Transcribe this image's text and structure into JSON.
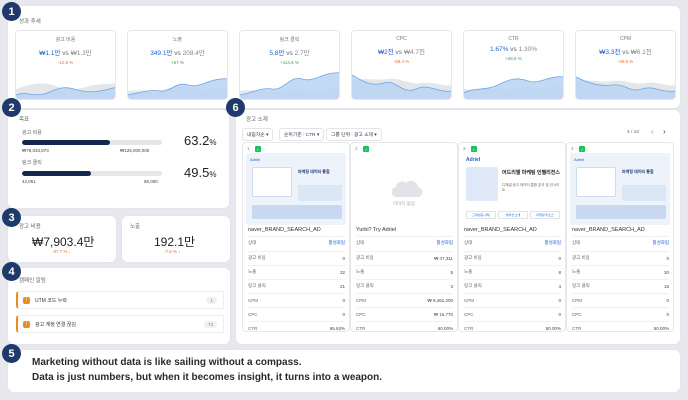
{
  "markers": [
    "1",
    "2",
    "3",
    "4",
    "5",
    "6"
  ],
  "performance": {
    "title": "성과 추세",
    "kpis": [
      {
        "label": "광고 비용",
        "current": "₩1.1만",
        "vs": "vs",
        "previous": "₩1.3만",
        "change": "-12.5 %",
        "dir": "down"
      },
      {
        "label": "노출",
        "current": "349.1만",
        "vs": "vs",
        "previous": "208.4만",
        "change": "+67 %",
        "dir": "up"
      },
      {
        "label": "링크 클릭",
        "current": "5.8만",
        "vs": "vs",
        "previous": "2.7만",
        "change": "+114.6 %",
        "dir": "up"
      },
      {
        "label": "CPC",
        "current": "₩2천",
        "vs": "vs",
        "previous": "₩4.7천",
        "change": "-58.4 %",
        "dir": "down"
      },
      {
        "label": "CTR",
        "current": "1.67%",
        "vs": "vs",
        "previous": "1.30%",
        "change": "+28.5 %",
        "dir": "up"
      },
      {
        "label": "CPM",
        "current": "₩3.3천",
        "vs": "vs",
        "previous": "₩6.1천",
        "change": "-46.5 %",
        "dir": "down"
      }
    ]
  },
  "goals": {
    "title": "목표",
    "items": [
      {
        "label": "광고 비용",
        "current": "₩79,033,873",
        "target": "₩125,000,000",
        "pct": "63.2",
        "unit": "%",
        "fill": 0.632
      },
      {
        "label": "링크 클릭",
        "current": "42,051",
        "target": "85,000",
        "pct": "49.5",
        "unit": "%",
        "fill": 0.495
      }
    ]
  },
  "summary": {
    "spend": {
      "label": "광고 비용",
      "value": "₩7,903.4만",
      "change": "-37.7 % ↓"
    },
    "impressions": {
      "label": "노출",
      "value": "192.1만",
      "change": "-7.8 % ↓"
    }
  },
  "alerts": {
    "title": "캠페인 알림",
    "items": [
      {
        "text": "UTM 코드 누락",
        "count": "1"
      },
      {
        "text": "광고 계정 연결 끊김",
        "count": "73"
      }
    ]
  },
  "quote": {
    "line1": "Marketing without data is like sailing without a compass.",
    "line2": "Data is just numbers, but when it becomes insight, it turns into a weapon."
  },
  "ads": {
    "title": "광고 소재",
    "sort": "내림차순 ▾",
    "metric": "순위기준 : CTR ▾",
    "group": "그룹 단위 : 광고 소재 ▾",
    "page": "4 / 10",
    "prev": "‹",
    "next": "›",
    "no_image": "이미지 없음",
    "columns": [
      {
        "index": "1",
        "name": "naver_BRAND_SEARCH_AD",
        "status_label": "상태",
        "status": "활성화됨",
        "rows": [
          [
            "광고 비용",
            "0"
          ],
          [
            "노출",
            "32"
          ],
          [
            "링크 클릭",
            "21"
          ],
          [
            "CPM",
            "0"
          ],
          [
            "CPC",
            "0"
          ],
          [
            "CTR",
            "65.63%"
          ]
        ]
      },
      {
        "index": "2",
        "name": "Yurbi? Try Adriel",
        "status_label": "상태",
        "status": "활성화됨",
        "rows": [
          [
            "광고 비용",
            "₩ 47,311"
          ],
          [
            "노출",
            "5"
          ],
          [
            "링크 클릭",
            "3"
          ],
          [
            "CPM",
            "₩ 9,462,200"
          ],
          [
            "CPC",
            "₩ 15,770"
          ],
          [
            "CTR",
            "60.00%"
          ]
        ]
      },
      {
        "index": "3",
        "name": "naver_BRAND_SEARCH_AD",
        "status_label": "상태",
        "status": "활성화됨",
        "rows": [
          [
            "광고 비용",
            "0"
          ],
          [
            "노출",
            "8"
          ],
          [
            "링크 클릭",
            "4"
          ],
          [
            "CPM",
            "0"
          ],
          [
            "CPC",
            "0"
          ],
          [
            "CTR",
            "50.00%"
          ]
        ]
      },
      {
        "index": "4",
        "name": "naver_BRAND_SEARCH_AD",
        "status_label": "상태",
        "status": "활성화됨",
        "rows": [
          [
            "광고 비용",
            "0"
          ],
          [
            "노출",
            "30"
          ],
          [
            "링크 클릭",
            "15"
          ],
          [
            "CPM",
            "0"
          ],
          [
            "CPC",
            "0"
          ],
          [
            "CTR",
            "50.00%"
          ]
        ]
      }
    ],
    "thumb_texts": {
      "brand": "Adriel",
      "headline": "마케팅 데이터 통합",
      "headline3": "어드리엘 마케팅 인텔리전스",
      "sub3": "디채널 광고 데이터 통합 분석 및 인사이트",
      "btn1": "고객성공 사례",
      "btn2": "솔루션 소개",
      "btn3": "마케팅 리소스"
    }
  }
}
